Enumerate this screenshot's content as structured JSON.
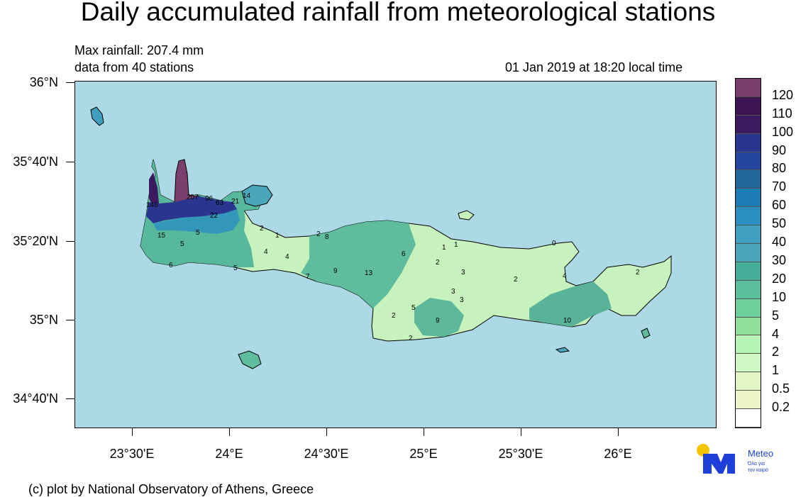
{
  "title": "Daily accumulated rainfall from meteorological stations",
  "info": {
    "max_rainfall": "Max rainfall: 207.4 mm",
    "stations": "data from 40 stations",
    "datetime": "01 Jan 2019 at 18:20 local time"
  },
  "axes": {
    "y_labels": [
      "36°N",
      "35°40'N",
      "35°20'N",
      "35°N",
      "34°40'N"
    ],
    "x_labels": [
      "23°30'E",
      "24°E",
      "24°30'E",
      "25°E",
      "25°30'E",
      "26°E"
    ]
  },
  "colorbar": {
    "labels": [
      "120",
      "110",
      "100",
      "90",
      "80",
      "70",
      "60",
      "50",
      "40",
      "30",
      "20",
      "10",
      "5",
      "4",
      "2",
      "1",
      "0.5",
      "0.2"
    ],
    "colors": [
      "#7b3f6e",
      "#3e1452",
      "#3b1a60",
      "#2a3590",
      "#25449e",
      "#1f6699",
      "#1c7ab5",
      "#2a8fc0",
      "#409fbf",
      "#4aa6b8",
      "#44ad9a",
      "#5abf9e",
      "#6dcf99",
      "#8fe09a",
      "#b8f3b6",
      "#d0f7c4",
      "#e2f5c4",
      "#eef6c8",
      "#ffffff"
    ]
  },
  "station_values": [
    "207",
    "96",
    "63",
    "21",
    "14",
    "146",
    "22",
    "2",
    "1",
    "15",
    "5",
    "5",
    "6",
    "4",
    "4",
    "2",
    "8",
    "5",
    "9",
    "13",
    "7",
    "6",
    "1",
    "1",
    "0",
    "2",
    "3",
    "3",
    "3",
    "2",
    "4",
    "2",
    "5",
    "9",
    "10",
    "2",
    "2"
  ],
  "credit": "(c) plot by National Observatory of Athens, Greece",
  "logo": {
    "name": "Meteo",
    "tagline_1": "Όλα για",
    "tagline_2": "τον καιρό",
    "colors": {
      "sun": "#f5c400",
      "mark": "#1e3fd8"
    }
  }
}
